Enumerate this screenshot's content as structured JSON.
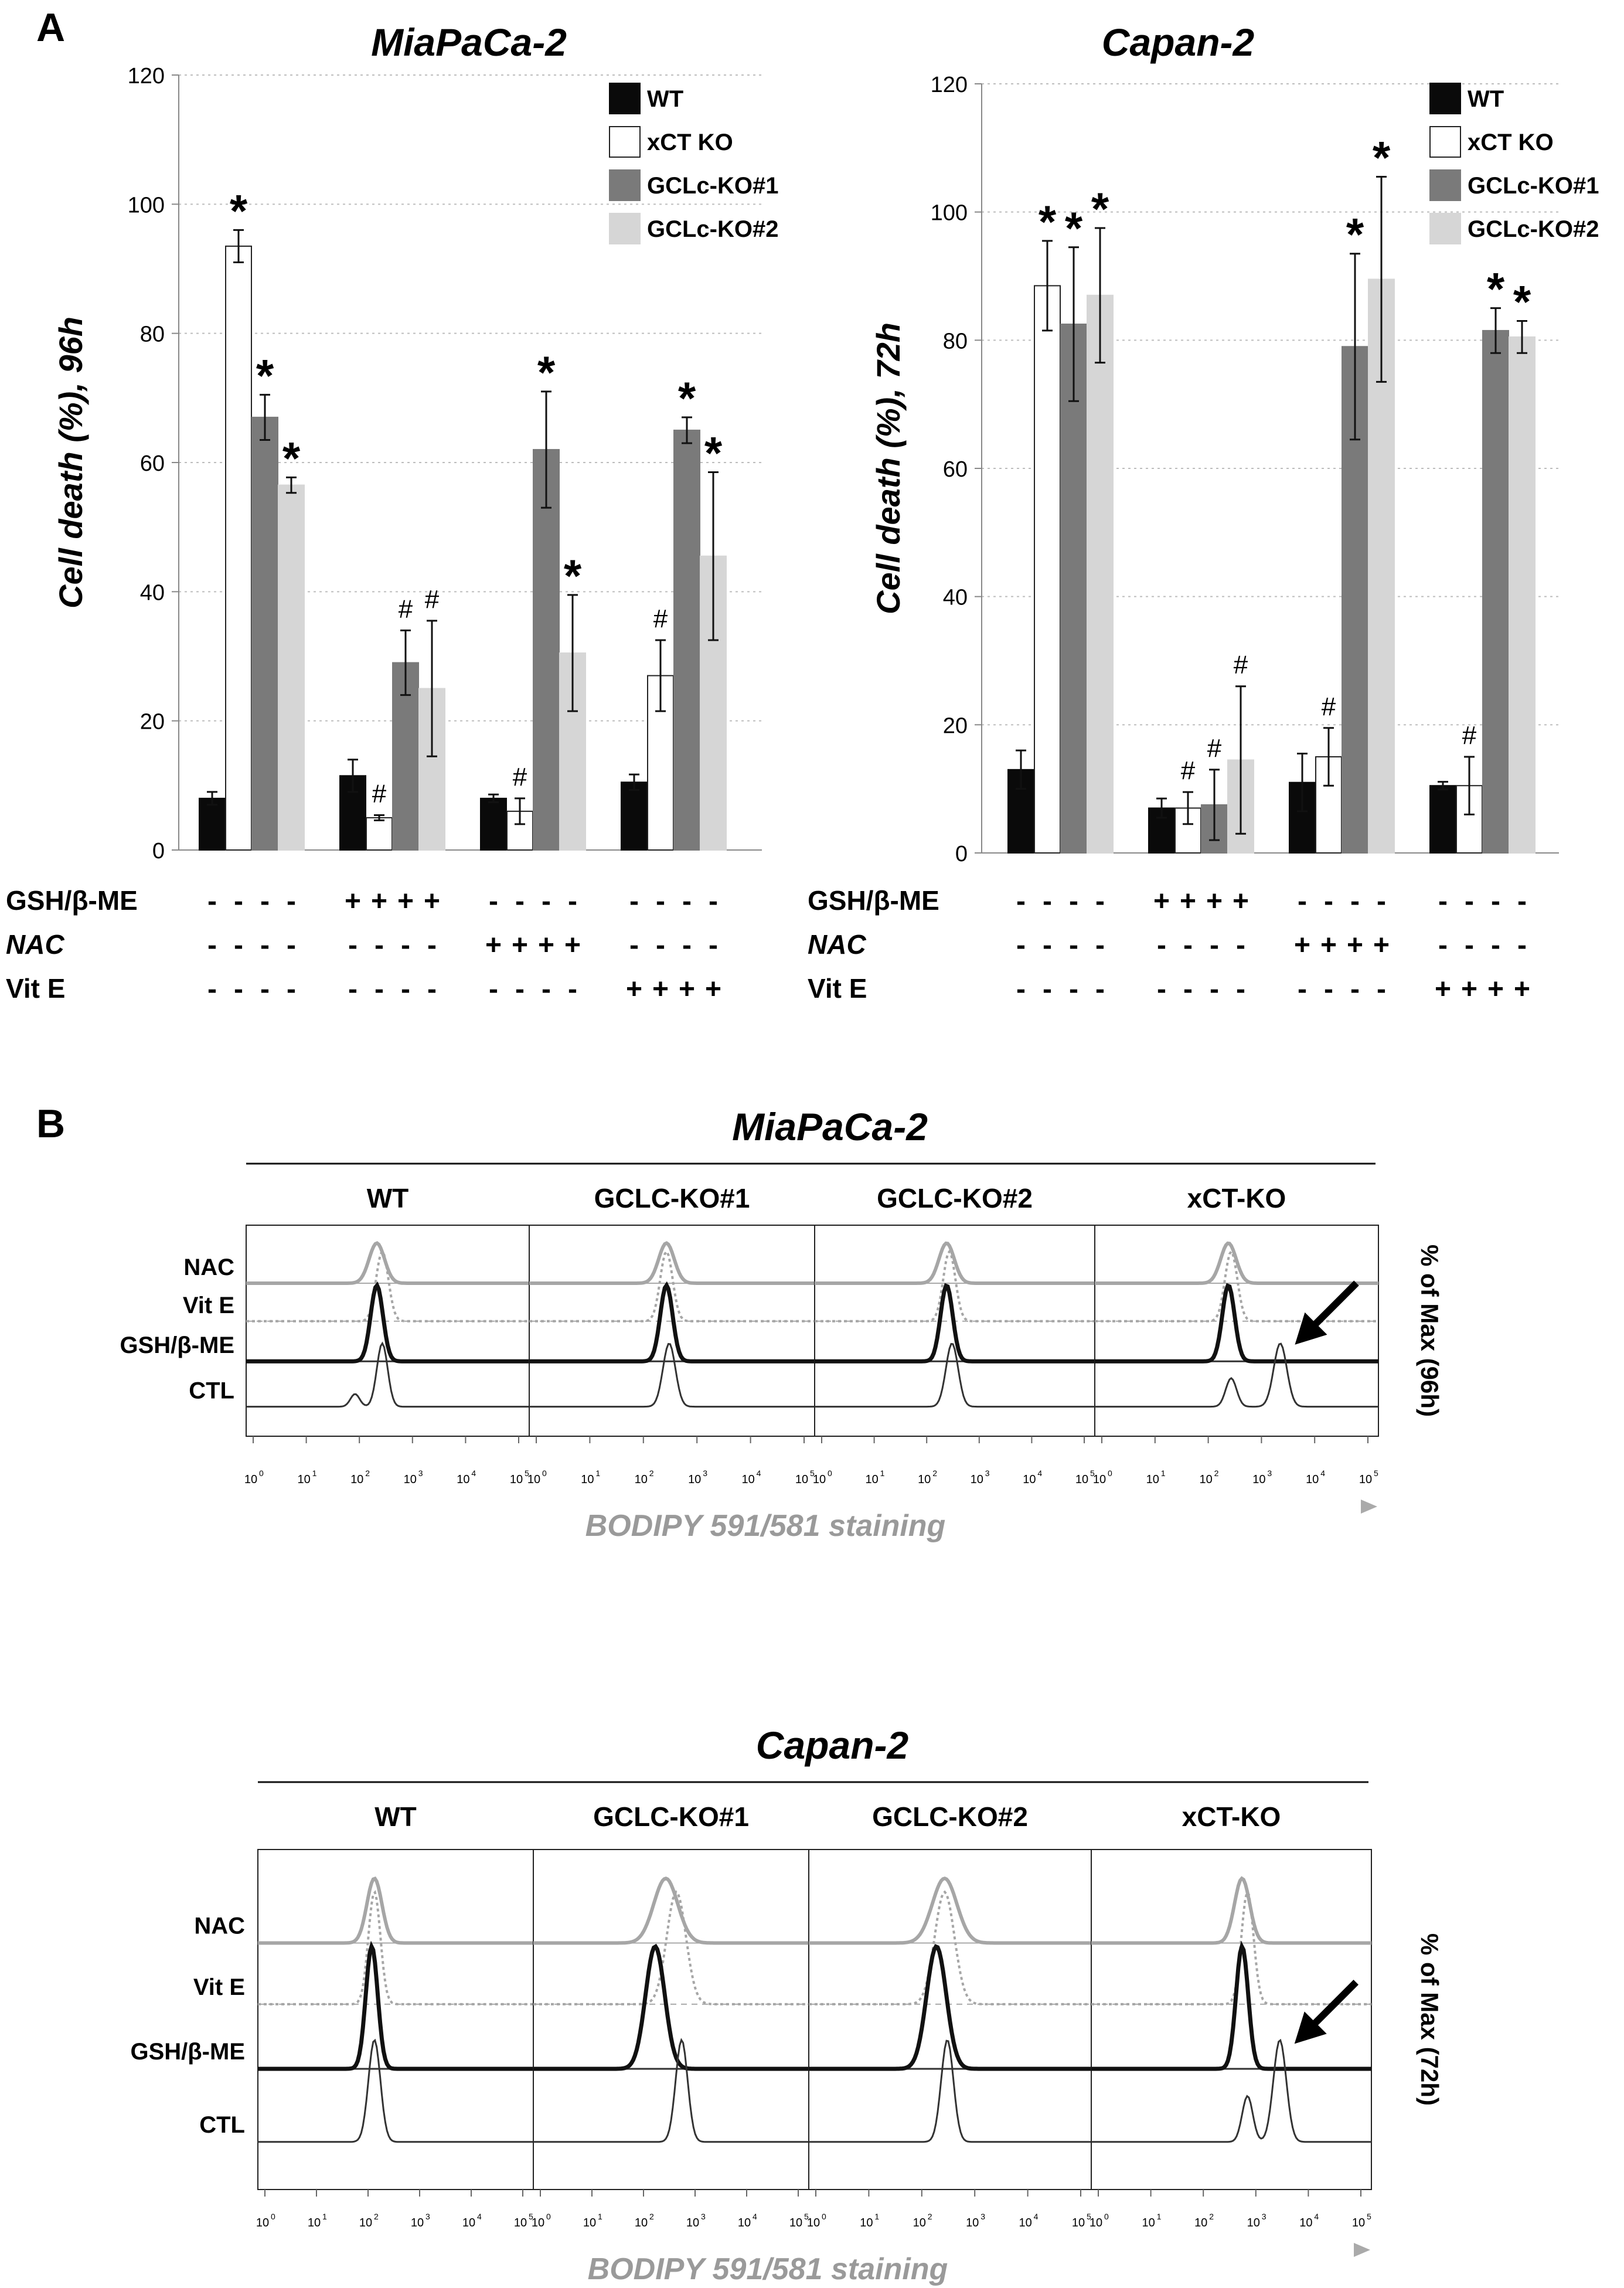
{
  "panel_a": {
    "letter": "A",
    "treatment_labels": [
      "GSH/β-ME",
      "NAC",
      "Vit E"
    ],
    "legend": [
      {
        "name": "WT",
        "color": "#0a0a0a"
      },
      {
        "name": "xCT KO",
        "color": "#ffffff"
      },
      {
        "name": "GCLc-KO#1",
        "color": "#7a7a7a"
      },
      {
        "name": "GCLc-KO#2",
        "color": "#d6d6d6"
      }
    ],
    "treatment_signs": {
      "group_1": [
        "-",
        "-",
        "-"
      ],
      "group_2": [
        "+",
        "-",
        "-"
      ],
      "group_3": [
        "-",
        "+",
        "-"
      ],
      "group_4": [
        "-",
        "-",
        "+"
      ]
    },
    "charts": [
      {
        "id": "miapaca",
        "title": "MiaPaCa-2",
        "ylabel": "Cell death (%), 96h",
        "ylim": [
          0,
          120
        ],
        "yticks": [
          "0",
          "20",
          "40",
          "60",
          "80",
          "100",
          "120"
        ],
        "values": [
          [
            8,
            93.5,
            67,
            56.5
          ],
          [
            11.5,
            5,
            29,
            25
          ],
          [
            8,
            6,
            62,
            30.5
          ],
          [
            10.5,
            27,
            65,
            45.5
          ]
        ],
        "errors": [
          [
            1,
            2.5,
            3.5,
            1.2
          ],
          [
            2.5,
            0.4,
            5,
            10.5
          ],
          [
            0.6,
            2,
            9,
            9
          ],
          [
            1.2,
            5.5,
            2,
            13
          ]
        ],
        "marks": [
          [
            "",
            "*",
            "*",
            "*"
          ],
          [
            "",
            "#",
            "#",
            "#"
          ],
          [
            "",
            "#",
            "*",
            "*"
          ],
          [
            "",
            "#",
            "*",
            "*"
          ]
        ]
      },
      {
        "id": "capan",
        "title": "Capan-2",
        "ylabel": "Cell death (%), 72h",
        "ylim": [
          0,
          120
        ],
        "yticks": [
          "0",
          "20",
          "40",
          "60",
          "80",
          "100",
          "120"
        ],
        "values": [
          [
            13,
            88.5,
            82.5,
            87
          ],
          [
            7,
            7,
            7.5,
            14.5
          ],
          [
            11,
            15,
            79,
            89.5
          ],
          [
            10.5,
            10.5,
            81.5,
            80.5
          ]
        ],
        "errors": [
          [
            3,
            7,
            12,
            10.5
          ],
          [
            1.5,
            2.5,
            5.5,
            11.5
          ],
          [
            4.5,
            4.5,
            14.5,
            16
          ],
          [
            0.6,
            4.5,
            3.5,
            2.5
          ]
        ],
        "marks": [
          [
            "",
            "*",
            "*",
            "*"
          ],
          [
            "",
            "#",
            "#",
            "#"
          ],
          [
            "",
            "#",
            "*",
            "*"
          ],
          [
            "",
            "#",
            "*",
            "*"
          ]
        ]
      }
    ]
  },
  "panel_b": {
    "letter": "B",
    "rows": [
      "NAC",
      "Vit E",
      "GSH/β-ME",
      "CTL"
    ],
    "xticks": [
      "10",
      "10",
      "10",
      "10",
      "10",
      "10"
    ],
    "xtick_exponents": [
      "0",
      "1",
      "2",
      "3",
      "4",
      "5"
    ],
    "xlabel": "BODIPY 591/581 staining",
    "blocks": [
      {
        "id": "miapaca",
        "title": "MiaPaCa-2",
        "columns": [
          "WT",
          "GCLC-KO#1",
          "GCLC-KO#2",
          "xCT-KO"
        ],
        "ylabel": "% of Max (96h)",
        "peak_log10": [
          {
            "nac": 2.4,
            "vite": 2.5,
            "gsh": 2.4,
            "ctl": 2.5,
            "ctl_second": 2.0
          },
          {
            "nac": 2.5,
            "vite": 2.5,
            "gsh": 2.5,
            "ctl": 2.55
          },
          {
            "nac": 2.45,
            "vite": 2.5,
            "gsh": 2.45,
            "ctl": 2.55
          },
          {
            "nac": 2.45,
            "vite": 2.5,
            "gsh": 2.45,
            "ctl": 2.5,
            "ctl_second": 3.4
          }
        ]
      },
      {
        "id": "capan",
        "title": "Capan-2",
        "columns": [
          "WT",
          "GCLC-KO#1",
          "GCLC-KO#2",
          "xCT-KO"
        ],
        "ylabel": "% of Max (72h)",
        "peak_log10": [
          {
            "nac": 2.2,
            "vite": 2.2,
            "gsh": 2.15,
            "ctl": 2.2
          },
          {
            "nac": 2.5,
            "vite": 2.7,
            "gsh": 2.3,
            "ctl": 2.8
          },
          {
            "nac": 2.5,
            "vite": 2.5,
            "gsh": 2.35,
            "ctl": 2.55
          },
          {
            "nac": 2.8,
            "vite": 2.9,
            "gsh": 2.8,
            "ctl": 2.9,
            "ctl_second": 3.5
          }
        ]
      }
    ]
  },
  "chart_data": [
    {
      "type": "bar",
      "title": "MiaPaCa-2",
      "xlabel": "",
      "ylabel": "Cell death (%), 96h",
      "ylim": [
        0,
        120
      ],
      "grid": true,
      "legend": "top-right",
      "categories": [
        "-/-/-",
        "GSH/β-ME",
        "NAC",
        "Vit E"
      ],
      "series": [
        {
          "name": "WT",
          "values": [
            8,
            11.5,
            8,
            10.5
          ]
        },
        {
          "name": "xCT KO",
          "values": [
            93.5,
            5,
            6,
            27
          ]
        },
        {
          "name": "GCLc-KO#1",
          "values": [
            67,
            29,
            62,
            65
          ]
        },
        {
          "name": "GCLc-KO#2",
          "values": [
            56.5,
            25,
            30.5,
            45.5
          ]
        }
      ]
    },
    {
      "type": "bar",
      "title": "Capan-2",
      "xlabel": "",
      "ylabel": "Cell death (%), 72h",
      "ylim": [
        0,
        120
      ],
      "grid": true,
      "legend": "top-right",
      "categories": [
        "-/-/-",
        "GSH/β-ME",
        "NAC",
        "Vit E"
      ],
      "series": [
        {
          "name": "WT",
          "values": [
            13,
            7,
            11,
            10.5
          ]
        },
        {
          "name": "xCT KO",
          "values": [
            88.5,
            7,
            15,
            10.5
          ]
        },
        {
          "name": "GCLc-KO#1",
          "values": [
            82.5,
            7.5,
            79,
            81.5
          ]
        },
        {
          "name": "GCLc-KO#2",
          "values": [
            87,
            14.5,
            89.5,
            80.5
          ]
        }
      ]
    },
    {
      "type": "area",
      "title": "MiaPaCa-2 BODIPY 591/581 staining (96h)",
      "xlabel": "BODIPY 591/581 staining",
      "ylabel": "% of Max (96h)",
      "x_scale": "log10",
      "xlim": [
        1,
        100000
      ],
      "categories": [
        "WT",
        "GCLC-KO#1",
        "GCLC-KO#2",
        "xCT-KO"
      ],
      "series": [
        {
          "name": "NAC peak log10",
          "values": [
            2.4,
            2.5,
            2.45,
            2.45
          ]
        },
        {
          "name": "Vit E peak log10",
          "values": [
            2.5,
            2.5,
            2.5,
            2.5
          ]
        },
        {
          "name": "GSH/β-ME peak log10",
          "values": [
            2.4,
            2.5,
            2.45,
            2.45
          ]
        },
        {
          "name": "CTL peak log10",
          "values": [
            2.5,
            2.55,
            2.55,
            3.4
          ]
        }
      ]
    },
    {
      "type": "area",
      "title": "Capan-2 BODIPY 591/581 staining (72h)",
      "xlabel": "BODIPY 591/581 staining",
      "ylabel": "% of Max (72h)",
      "x_scale": "log10",
      "xlim": [
        1,
        100000
      ],
      "categories": [
        "WT",
        "GCLC-KO#1",
        "GCLC-KO#2",
        "xCT-KO"
      ],
      "series": [
        {
          "name": "NAC peak log10",
          "values": [
            2.2,
            2.5,
            2.5,
            2.8
          ]
        },
        {
          "name": "Vit E peak log10",
          "values": [
            2.2,
            2.7,
            2.5,
            2.9
          ]
        },
        {
          "name": "GSH/β-ME peak log10",
          "values": [
            2.15,
            2.3,
            2.35,
            2.8
          ]
        },
        {
          "name": "CTL peak log10",
          "values": [
            2.2,
            2.8,
            2.55,
            3.5
          ]
        }
      ]
    }
  ]
}
